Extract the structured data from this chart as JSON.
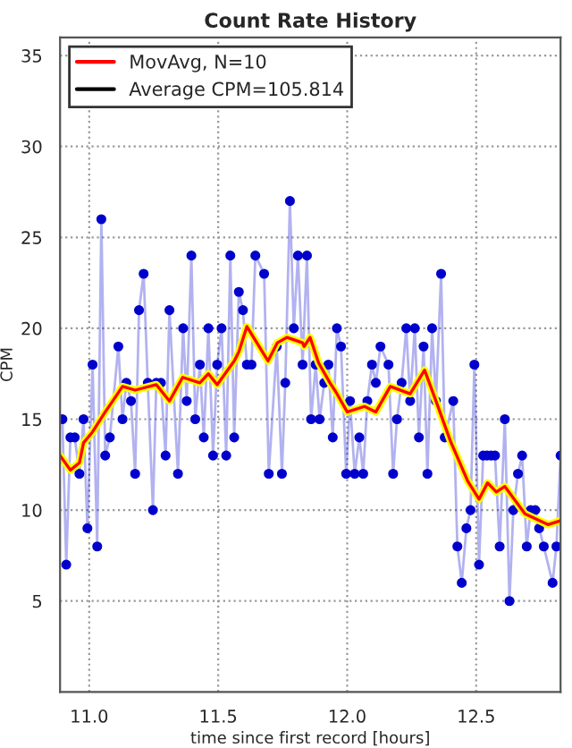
{
  "chart_data": {
    "type": "line",
    "title": "Count Rate History",
    "xlabel": "time since first record [hours]",
    "ylabel": "CPM",
    "xlim": [
      10.887,
      12.827
    ],
    "xticks": [
      {
        "value": 11,
        "label": "11.0"
      },
      {
        "value": 11.5,
        "label": "11.5"
      },
      {
        "value": 12,
        "label": "12.0"
      },
      {
        "value": 12.5,
        "label": "12.5"
      }
    ],
    "ylim": [
      0,
      36
    ],
    "yticks": [
      5,
      10,
      15,
      20,
      25,
      30,
      35
    ],
    "grid": true,
    "legend": "top left",
    "line_style": "solid",
    "series": [
      {
        "marker": "circle",
        "color": "#0000cc",
        "x": [
          10.896,
          10.911,
          10.927,
          10.944,
          10.962,
          10.978,
          10.993,
          11.013,
          11.031,
          11.047,
          11.062,
          11.08,
          11.113,
          11.129,
          11.144,
          11.162,
          11.178,
          11.193,
          11.211,
          11.227,
          11.247,
          11.26,
          11.278,
          11.296,
          11.311,
          11.344,
          11.364,
          11.378,
          11.396,
          11.411,
          11.429,
          11.444,
          11.462,
          11.48,
          11.496,
          11.513,
          11.531,
          11.547,
          11.562,
          11.58,
          11.596,
          11.611,
          11.629,
          11.644,
          11.678,
          11.696,
          11.727,
          11.747,
          11.76,
          11.778,
          11.793,
          11.809,
          11.827,
          11.844,
          11.86,
          11.878,
          11.893,
          11.911,
          11.927,
          11.944,
          11.96,
          11.976,
          11.996,
          12.011,
          12.029,
          12.047,
          12.062,
          12.078,
          12.096,
          12.111,
          12.129,
          12.16,
          12.178,
          12.193,
          12.211,
          12.229,
          12.244,
          12.262,
          12.278,
          12.296,
          12.311,
          12.329,
          12.344,
          12.364,
          12.378,
          12.411,
          12.427,
          12.444,
          12.462,
          12.478,
          12.493,
          12.511,
          12.527,
          12.542,
          12.558,
          12.573,
          12.591,
          12.611,
          12.629,
          12.644,
          12.662,
          12.678,
          12.696,
          12.711,
          12.729,
          12.744,
          12.762,
          12.796,
          12.811,
          12.827
        ],
        "values": [
          15,
          7,
          14,
          14,
          12,
          15,
          9,
          18,
          8,
          26,
          13,
          14,
          19,
          15,
          17,
          16,
          12,
          21,
          23,
          17,
          10,
          17,
          17,
          13,
          21,
          12,
          20,
          16,
          24,
          15,
          18,
          14,
          20,
          13,
          18,
          20,
          13,
          24,
          14,
          22,
          21,
          18,
          18,
          24,
          23,
          12,
          19,
          12,
          17,
          27,
          20,
          24,
          18,
          24,
          15,
          18,
          15,
          17,
          18,
          14,
          20,
          19,
          12,
          16,
          12,
          14,
          12,
          16,
          18,
          17,
          19,
          18,
          12,
          15,
          17,
          20,
          16,
          20,
          14,
          19,
          12,
          20,
          16,
          23,
          14,
          16,
          8,
          6,
          9,
          10,
          18,
          7,
          13,
          13,
          13,
          13,
          8,
          15,
          5,
          10,
          12,
          13,
          8,
          10,
          10,
          9,
          8,
          6,
          8,
          13
        ]
      },
      {
        "marker": "none",
        "name": "MovAvg, N=10",
        "color": "#ff0000",
        "x": [
          10.887,
          10.927,
          10.962,
          10.978,
          11.013,
          11.062,
          11.096,
          11.129,
          11.178,
          11.26,
          11.311,
          11.362,
          11.429,
          11.462,
          11.496,
          11.562,
          11.58,
          11.611,
          11.693,
          11.729,
          11.767,
          11.827,
          11.833,
          11.856,
          11.889,
          11.933,
          11.956,
          12.0,
          12.067,
          12.111,
          12.167,
          12.244,
          12.3,
          12.344,
          12.4,
          12.467,
          12.511,
          12.544,
          12.578,
          12.611,
          12.689,
          12.778,
          12.822
        ],
        "values": [
          13.0,
          12.2,
          12.6,
          13.7,
          14.3,
          15.4,
          16.1,
          16.8,
          16.6,
          16.9,
          16.0,
          17.3,
          17.0,
          17.5,
          16.9,
          18.2,
          18.7,
          20.1,
          18.2,
          19.2,
          19.5,
          19.2,
          19.0,
          19.5,
          18.1,
          17.0,
          16.5,
          15.4,
          15.7,
          15.4,
          16.8,
          16.4,
          17.7,
          16.0,
          13.8,
          11.6,
          10.6,
          11.5,
          11.0,
          11.3,
          9.8,
          9.2,
          9.4
        ]
      },
      {
        "marker": "none",
        "name": "Average CPM=105.814",
        "color": "#000000"
      }
    ]
  }
}
